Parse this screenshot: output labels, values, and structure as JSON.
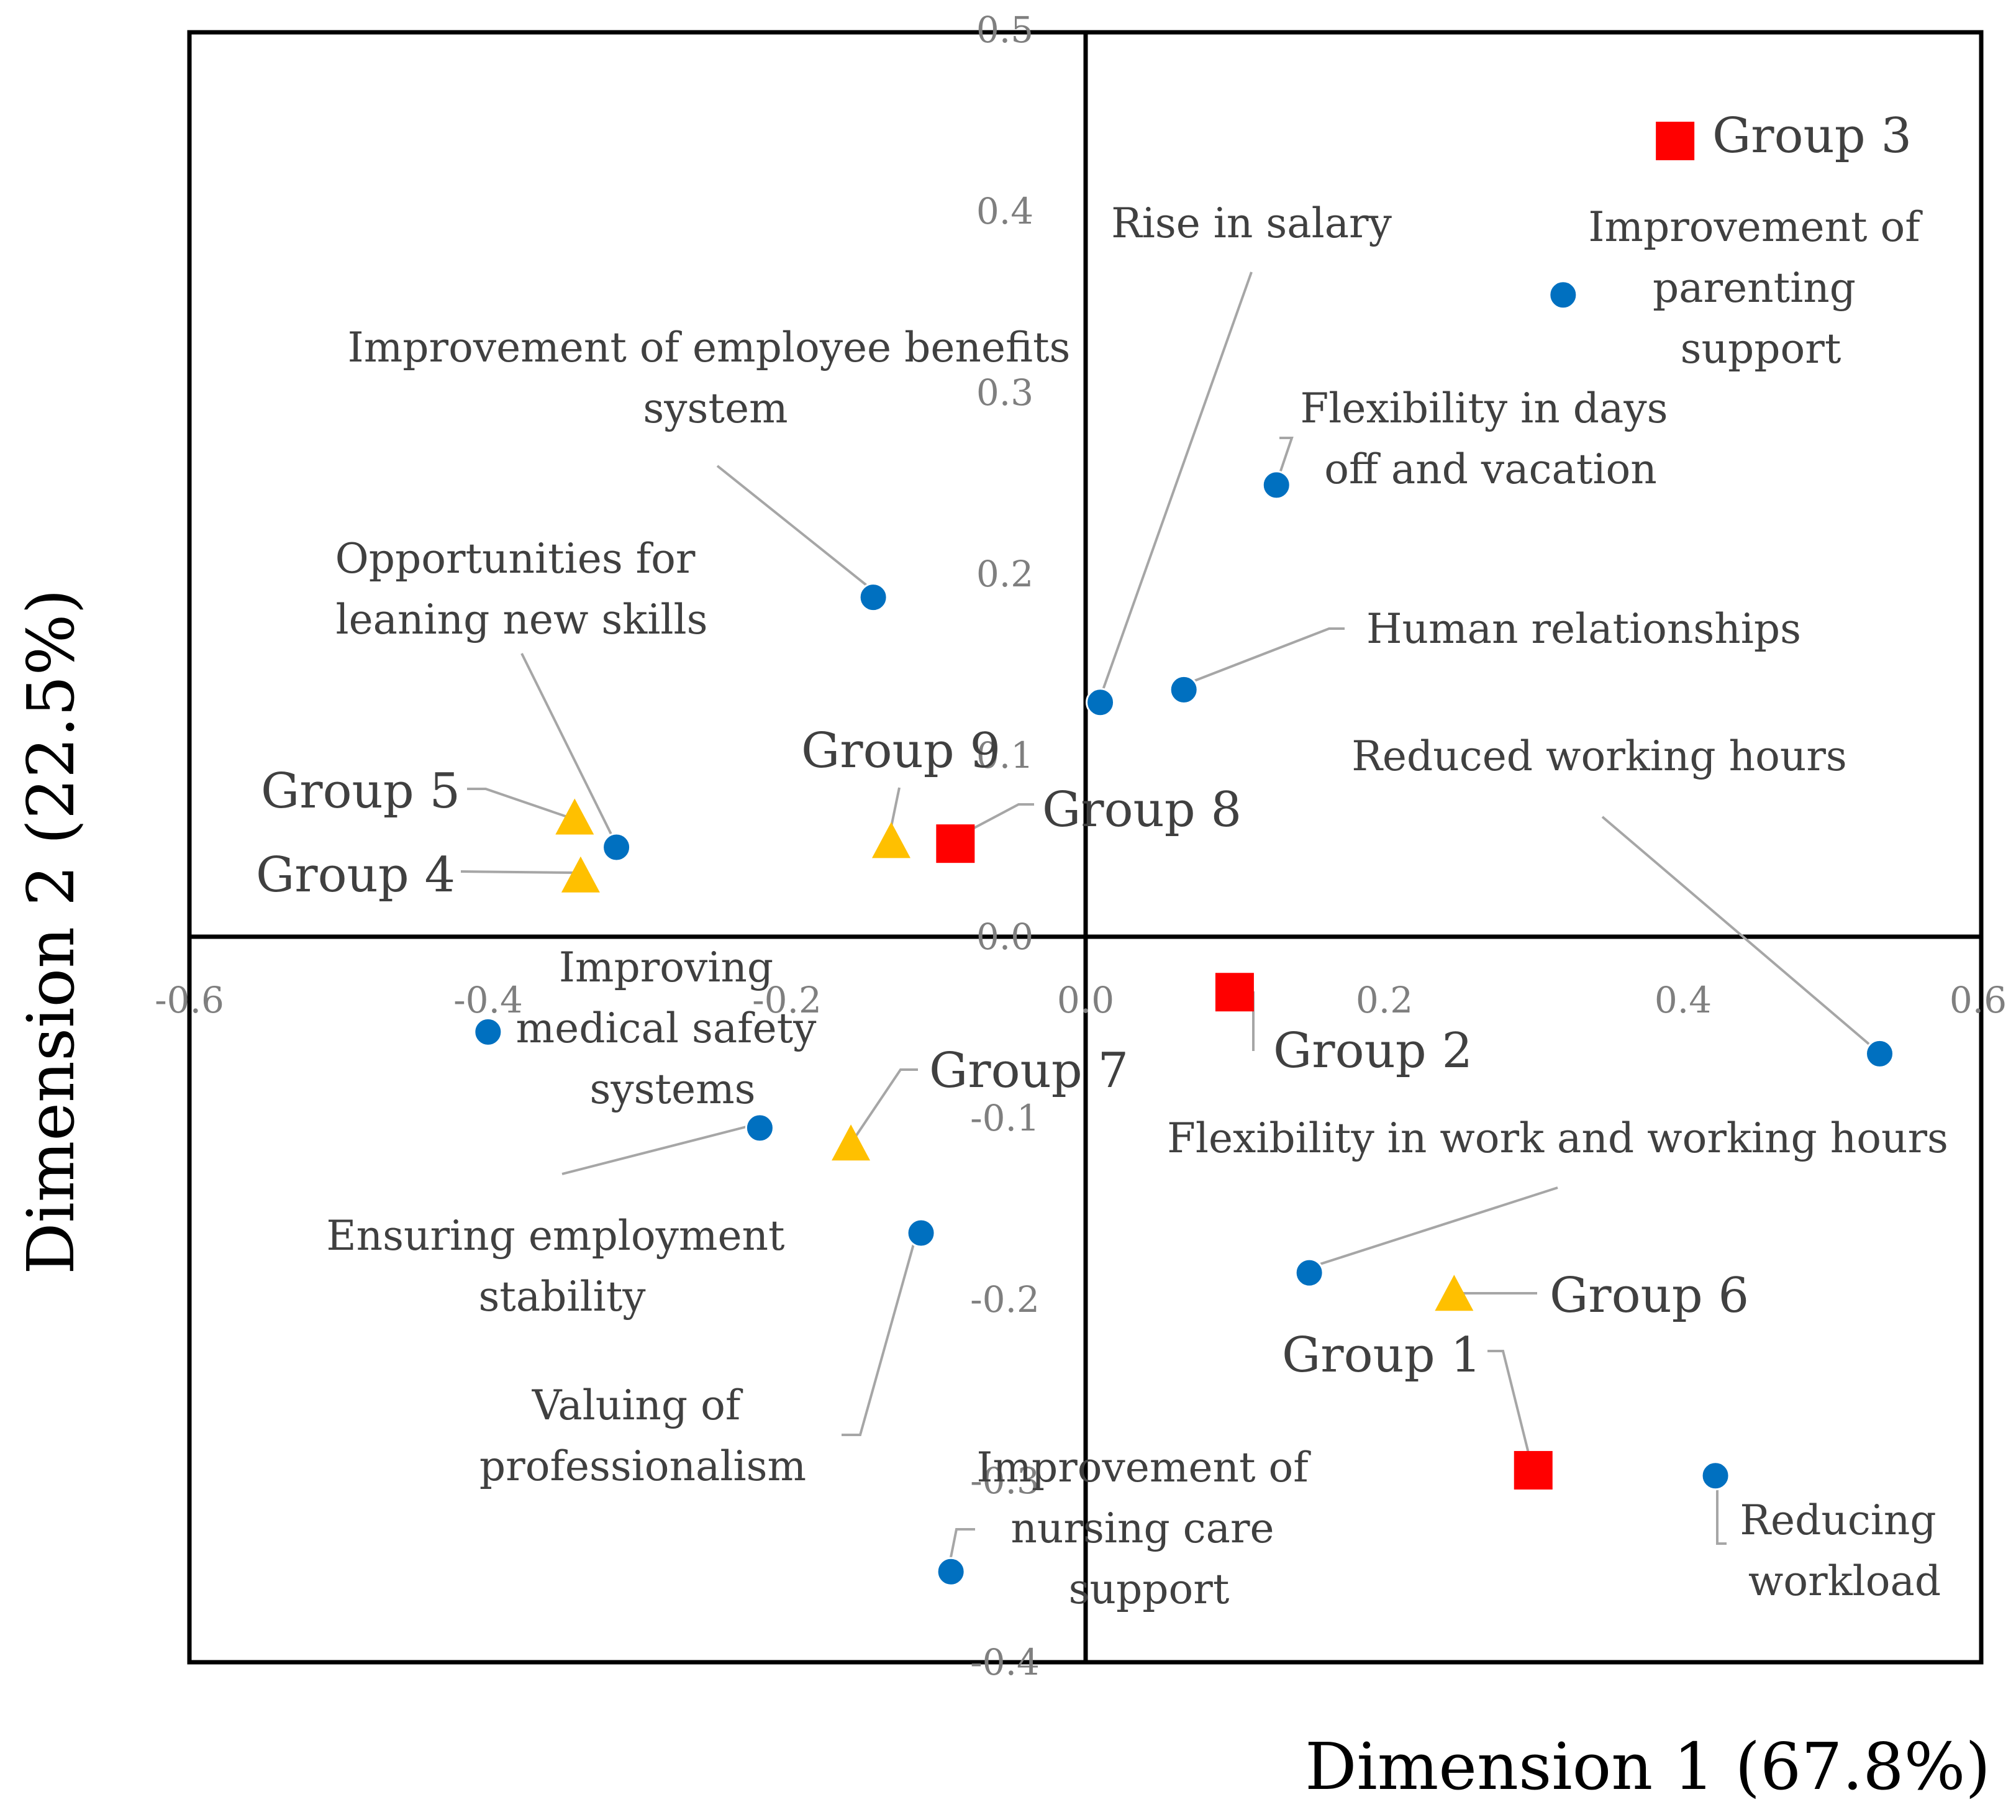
{
  "chart_data": {
    "type": "scatter",
    "xlabel": "Dimension 1 (67.8%)",
    "ylabel": "Dimension 2 (22.5%)",
    "xlim": [
      -0.6,
      0.6
    ],
    "ylim": [
      -0.4,
      0.5
    ],
    "x_ticks": [
      -0.6,
      -0.4,
      -0.2,
      0.0,
      0.2,
      0.4,
      0.6
    ],
    "y_ticks": [
      -0.4,
      -0.3,
      -0.2,
      -0.1,
      0.0,
      0.1,
      0.2,
      0.3,
      0.4,
      0.5
    ],
    "x_tick_labels": [
      "-0.6",
      "-0.4",
      "-0.2",
      "0.0",
      "0.2",
      "0.4",
      "0.6"
    ],
    "y_tick_labels": [
      "-0.4",
      "-0.3",
      "-0.2",
      "-0.1",
      "0.0",
      "0.1",
      "0.2",
      "0.3",
      "0.4",
      "0.5"
    ],
    "grid": false,
    "colors": {
      "circle": "#0070c0",
      "square": "#ff0000",
      "triangle": "#ffc000"
    },
    "points": [
      {
        "label": "Rise in salary",
        "x": 0.01,
        "y": 0.13,
        "marker": "circle"
      },
      {
        "label": "Improvement of parenting support",
        "x": 0.32,
        "y": 0.355,
        "marker": "circle"
      },
      {
        "label": "Flexibility in days off and vacation",
        "x": 0.128,
        "y": 0.25,
        "marker": "circle"
      },
      {
        "label": "Improvement of employee benefits system",
        "x": -0.142,
        "y": 0.188,
        "marker": "circle"
      },
      {
        "label": "Human relationships",
        "x": 0.066,
        "y": 0.137,
        "marker": "circle"
      },
      {
        "label": "Opportunities for leaning new skills",
        "x": -0.314,
        "y": 0.05,
        "marker": "circle"
      },
      {
        "label": "Reduced working hours",
        "x": 0.532,
        "y": -0.064,
        "marker": "circle"
      },
      {
        "label": "Improving medical safety systems",
        "x": -0.4,
        "y": -0.052,
        "marker": "circle"
      },
      {
        "label": "Ensuring employment stability",
        "x": -0.218,
        "y": -0.105,
        "marker": "circle"
      },
      {
        "label": "Valuing of professionalism",
        "x": -0.11,
        "y": -0.163,
        "marker": "circle"
      },
      {
        "label": "Flexibility in work and working hours",
        "x": 0.15,
        "y": -0.185,
        "marker": "circle"
      },
      {
        "label": "Reducing workload",
        "x": 0.422,
        "y": -0.297,
        "marker": "circle"
      },
      {
        "label": "Improvement of nursing care support",
        "x": -0.09,
        "y": -0.35,
        "marker": "circle"
      },
      {
        "label": "Group 1",
        "x": 0.3,
        "y": -0.294,
        "marker": "square"
      },
      {
        "label": "Group 2",
        "x": 0.1,
        "y": -0.03,
        "marker": "square"
      },
      {
        "label": "Group 3",
        "x": 0.395,
        "y": 0.44,
        "marker": "square"
      },
      {
        "label": "Group 8",
        "x": -0.087,
        "y": 0.052,
        "marker": "square"
      },
      {
        "label": "Group 4",
        "x": -0.338,
        "y": 0.033,
        "marker": "triangle"
      },
      {
        "label": "Group 5",
        "x": -0.342,
        "y": 0.065,
        "marker": "triangle"
      },
      {
        "label": "Group 6",
        "x": 0.247,
        "y": -0.198,
        "marker": "triangle"
      },
      {
        "label": "Group 7",
        "x": -0.157,
        "y": -0.115,
        "marker": "triangle"
      },
      {
        "label": "Group 9",
        "x": -0.13,
        "y": 0.052,
        "marker": "triangle"
      }
    ]
  }
}
